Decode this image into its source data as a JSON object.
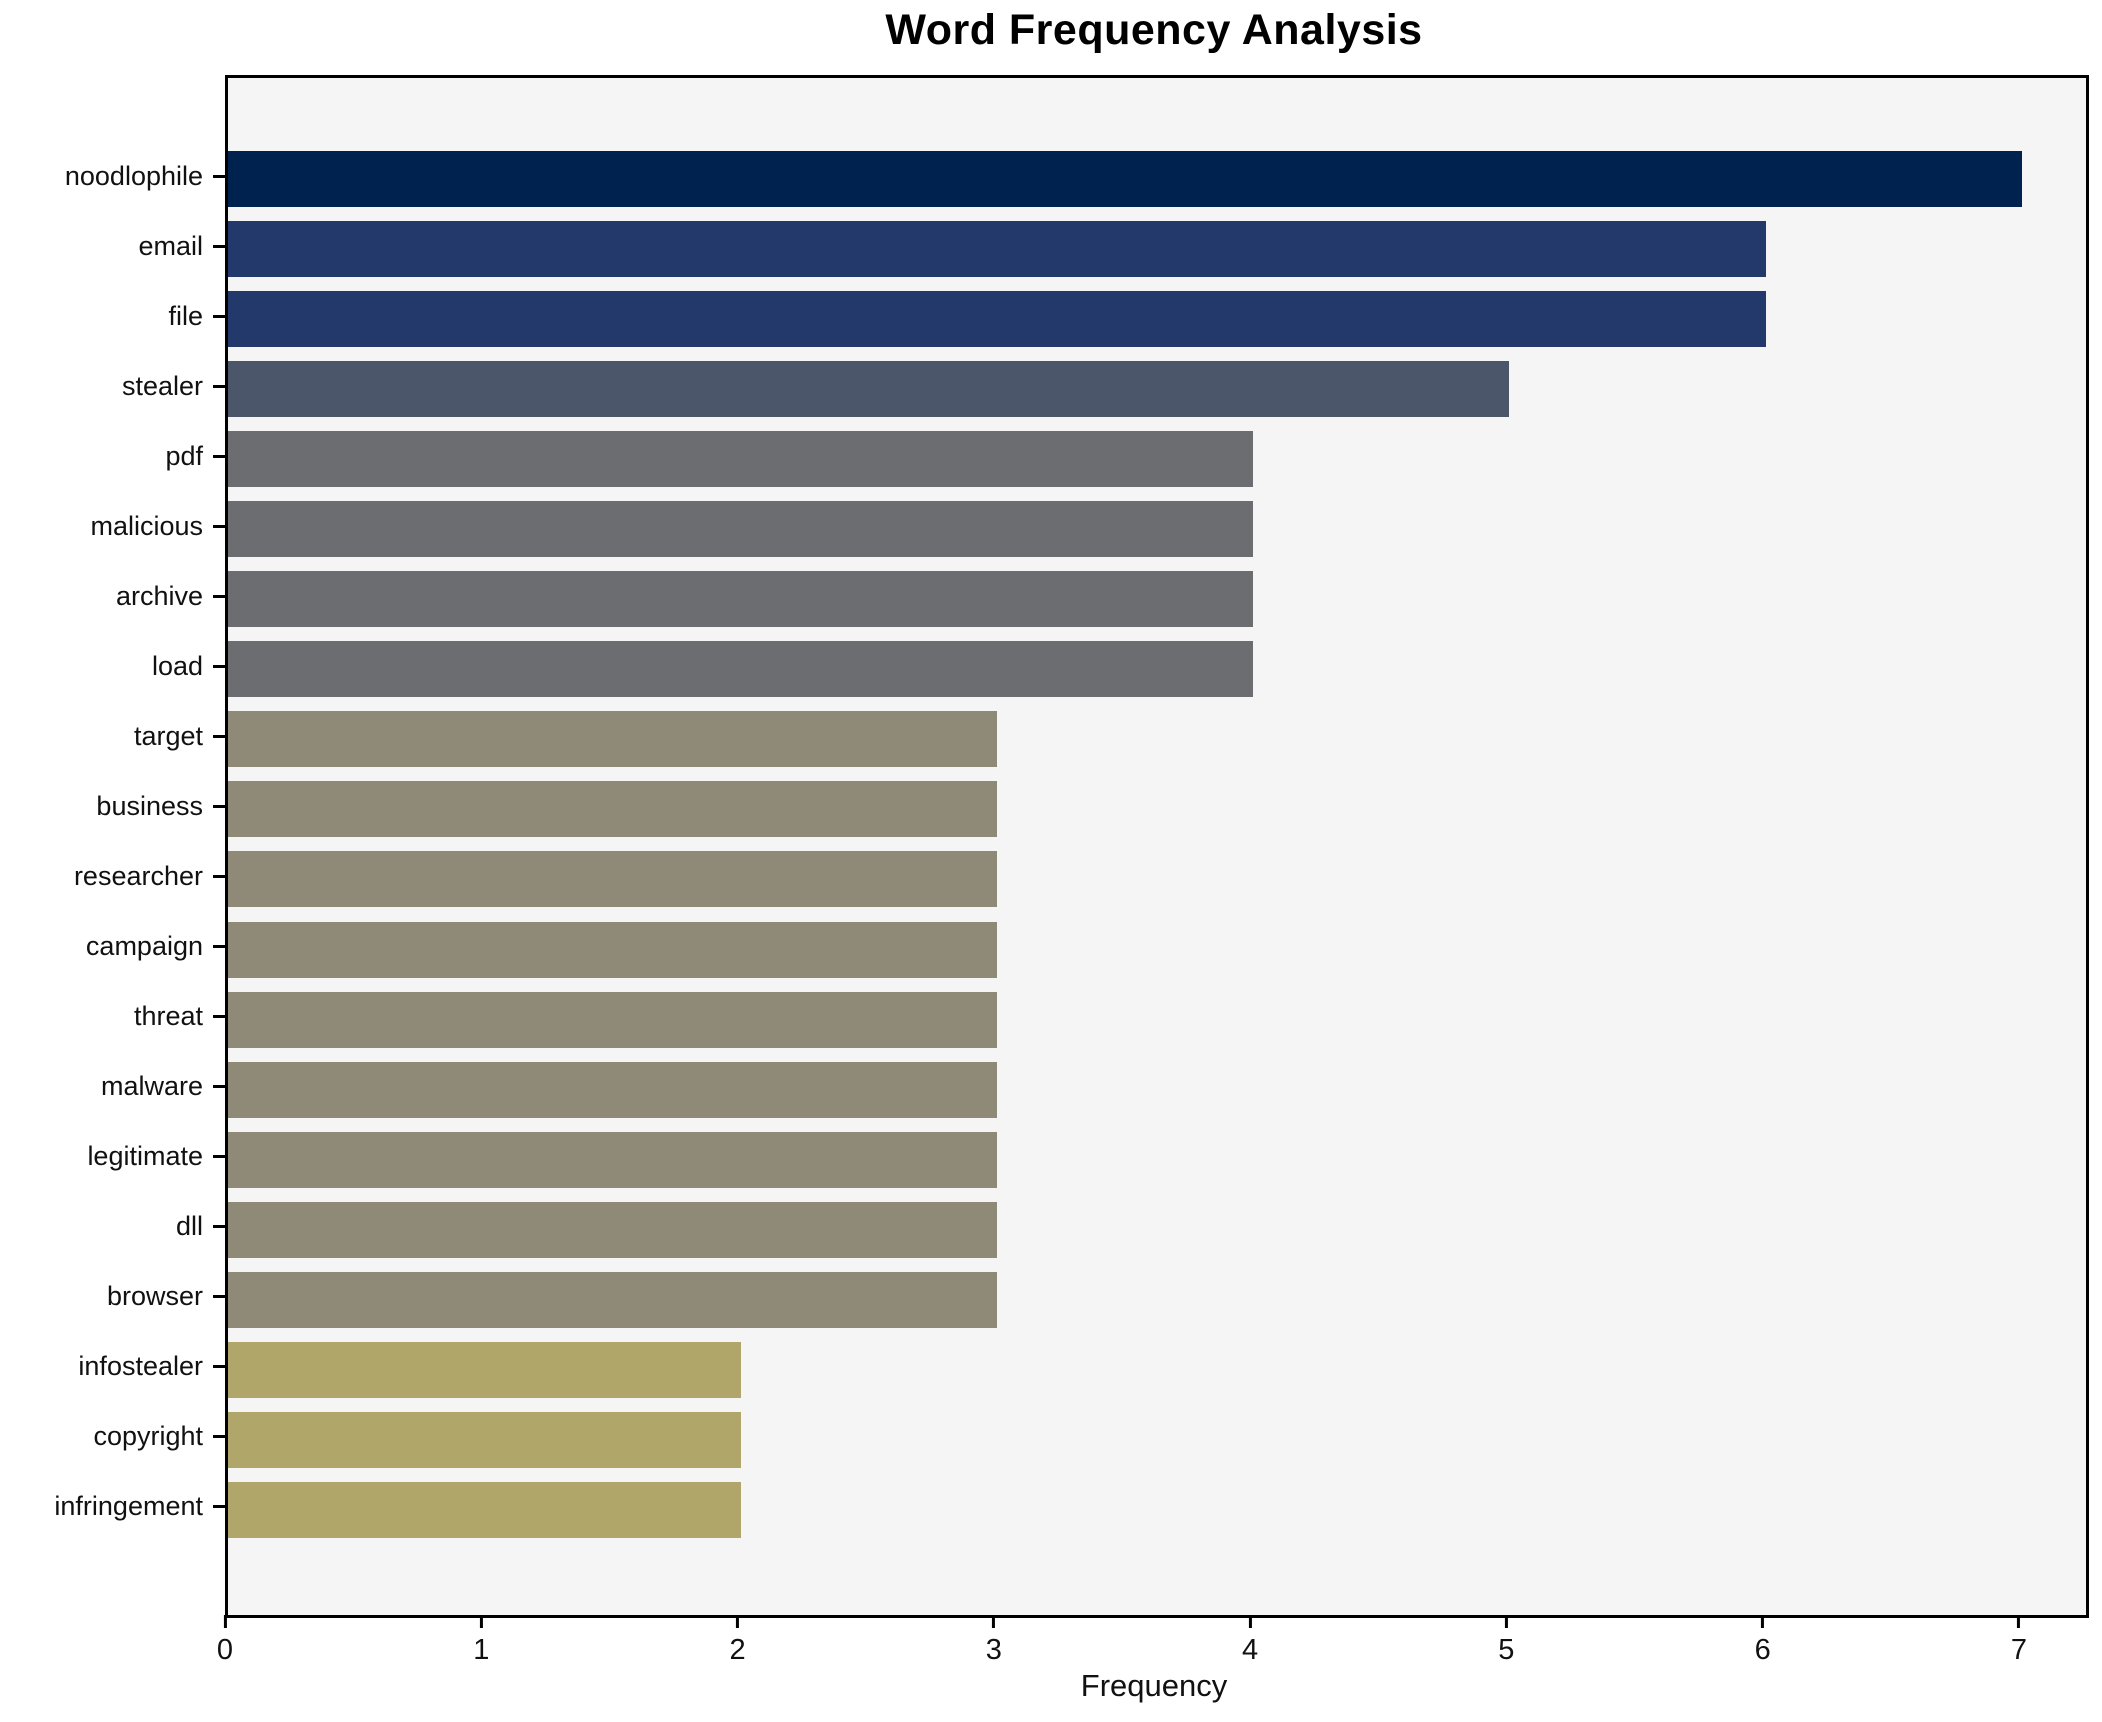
{
  "chart_data": {
    "type": "bar",
    "orientation": "horizontal",
    "title": "Word Frequency Analysis",
    "xlabel": "Frequency",
    "ylabel": "",
    "categories": [
      "noodlophile",
      "email",
      "file",
      "stealer",
      "pdf",
      "malicious",
      "archive",
      "load",
      "target",
      "business",
      "researcher",
      "campaign",
      "threat",
      "malware",
      "legitimate",
      "dll",
      "browser",
      "infostealer",
      "copyright",
      "infringement"
    ],
    "values": [
      7,
      6,
      6,
      5,
      4,
      4,
      4,
      4,
      3,
      3,
      3,
      3,
      3,
      3,
      3,
      3,
      3,
      2,
      2,
      2
    ],
    "bar_colors": [
      "#00224e",
      "#24396b",
      "#24396b",
      "#4c566b",
      "#6b6d71",
      "#6b6d71",
      "#6b6d71",
      "#6b6d71",
      "#8f8977",
      "#8f8977",
      "#8f8977",
      "#8f8977",
      "#8f8977",
      "#8f8977",
      "#8f8977",
      "#8f8977",
      "#8f8977",
      "#b0a66a",
      "#b0a66a",
      "#b0a66a"
    ],
    "xticks": [
      0,
      1,
      2,
      3,
      4,
      5,
      6,
      7
    ],
    "xlim": [
      0,
      7.25
    ],
    "grid": false,
    "legend": "none",
    "colormap": "cividis",
    "plot_background": "#f5f5f6",
    "figure_background": "#ffffff",
    "spine_color": "#000000"
  }
}
